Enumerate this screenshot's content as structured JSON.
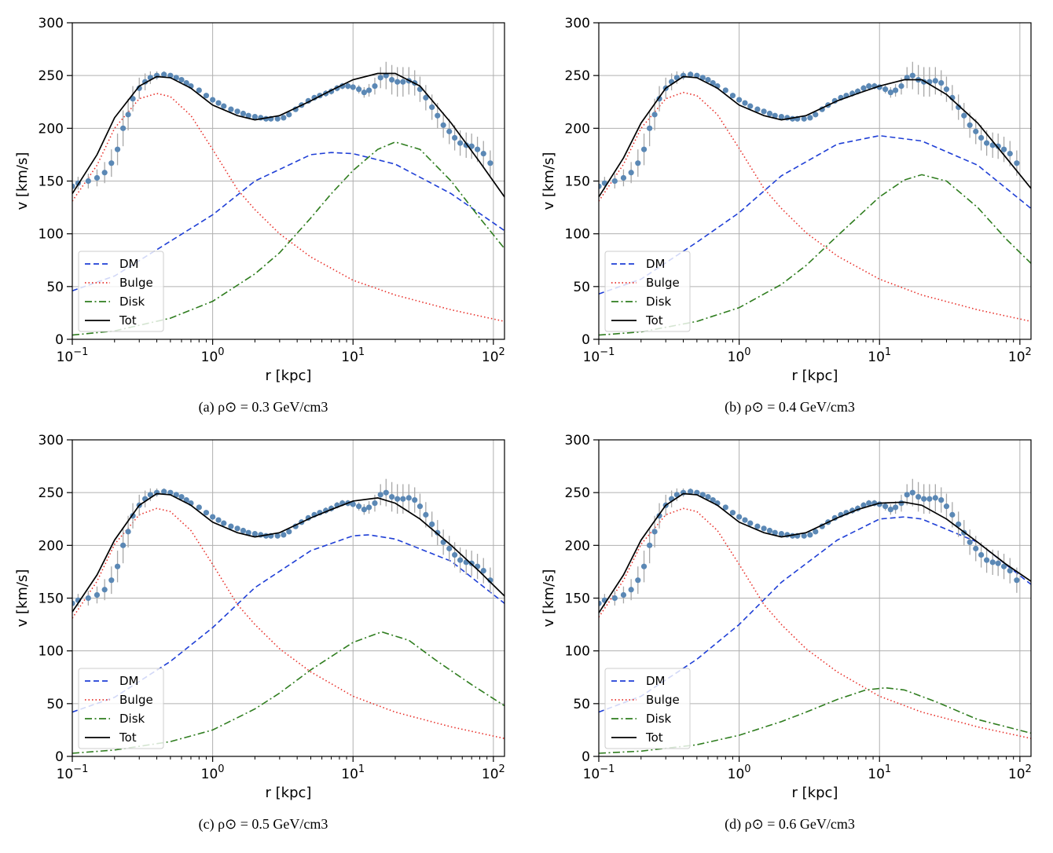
{
  "chart_data": [
    {
      "id": "a",
      "caption": "(a) ρ⊙ = 0.3 GeV/cm3",
      "type": "line",
      "xlabel": "r [kpc]",
      "ylabel": "v [km/s]",
      "xscale": "log",
      "xlim": [
        0.1,
        120
      ],
      "ylim": [
        0,
        300
      ],
      "yticks": [
        0,
        50,
        100,
        150,
        200,
        250,
        300
      ],
      "xticks": [
        {
          "v": 0.1,
          "label": "10−1"
        },
        {
          "v": 1,
          "label": "100"
        },
        {
          "v": 10,
          "label": "101"
        },
        {
          "v": 100,
          "label": "102"
        }
      ],
      "grid": true,
      "legend": {
        "position": "lower-left",
        "entries": [
          "DM",
          "Bulge",
          "Disk",
          "Tot"
        ]
      },
      "series": [
        {
          "name": "DM",
          "style": "dashed",
          "color": "#1f3fd6",
          "x": [
            0.1,
            0.2,
            0.5,
            1,
            2,
            5,
            7,
            10,
            20,
            50,
            120
          ],
          "y": [
            46,
            60,
            93,
            118,
            150,
            175,
            177,
            176,
            166,
            138,
            103
          ]
        },
        {
          "name": "Bulge",
          "style": "dotted",
          "color": "#e8312b",
          "x": [
            0.1,
            0.15,
            0.2,
            0.3,
            0.4,
            0.5,
            0.7,
            1,
            1.5,
            2,
            3,
            5,
            10,
            20,
            50,
            120
          ],
          "y": [
            131,
            165,
            200,
            228,
            233,
            230,
            212,
            180,
            142,
            123,
            100,
            78,
            56,
            42,
            28,
            17
          ]
        },
        {
          "name": "Disk",
          "style": "dashdot",
          "color": "#2f7d1f",
          "x": [
            0.1,
            0.2,
            0.5,
            1,
            2,
            3,
            5,
            7,
            10,
            15,
            20,
            30,
            50,
            80,
            120
          ],
          "y": [
            4,
            8,
            20,
            36,
            62,
            82,
            115,
            138,
            160,
            180,
            187,
            180,
            150,
            115,
            86
          ]
        },
        {
          "name": "Tot",
          "style": "solid",
          "color": "#000000",
          "x": [
            0.1,
            0.15,
            0.2,
            0.3,
            0.4,
            0.5,
            0.7,
            1,
            1.5,
            2,
            3,
            5,
            7,
            10,
            15,
            20,
            30,
            50,
            80,
            120
          ],
          "y": [
            138,
            175,
            210,
            240,
            249,
            248,
            238,
            222,
            212,
            208,
            212,
            226,
            236,
            246,
            252,
            252,
            240,
            205,
            168,
            135
          ]
        }
      ]
    },
    {
      "id": "b",
      "caption": "(b) ρ⊙ = 0.4 GeV/cm3",
      "type": "line",
      "xlabel": "r [kpc]",
      "ylabel": "v [km/s]",
      "xscale": "log",
      "xlim": [
        0.1,
        120
      ],
      "ylim": [
        0,
        300
      ],
      "yticks": [
        0,
        50,
        100,
        150,
        200,
        250,
        300
      ],
      "xticks": [
        {
          "v": 0.1,
          "label": "10−1"
        },
        {
          "v": 1,
          "label": "100"
        },
        {
          "v": 10,
          "label": "101"
        },
        {
          "v": 100,
          "label": "102"
        }
      ],
      "grid": true,
      "legend": {
        "position": "lower-left",
        "entries": [
          "DM",
          "Bulge",
          "Disk",
          "Tot"
        ]
      },
      "series": [
        {
          "name": "DM",
          "style": "dashed",
          "color": "#1f3fd6",
          "x": [
            0.1,
            0.2,
            0.5,
            1,
            2,
            5,
            10,
            20,
            50,
            120
          ],
          "y": [
            43,
            57,
            92,
            120,
            155,
            185,
            193,
            188,
            165,
            124
          ]
        },
        {
          "name": "Bulge",
          "style": "dotted",
          "color": "#e8312b",
          "x": [
            0.1,
            0.15,
            0.2,
            0.3,
            0.4,
            0.5,
            0.7,
            1,
            1.5,
            2,
            3,
            5,
            10,
            20,
            50,
            120
          ],
          "y": [
            131,
            166,
            200,
            228,
            234,
            231,
            213,
            181,
            143,
            124,
            101,
            79,
            57,
            42,
            28,
            17
          ]
        },
        {
          "name": "Disk",
          "style": "dashdot",
          "color": "#2f7d1f",
          "x": [
            0.1,
            0.2,
            0.5,
            1,
            2,
            3,
            5,
            10,
            15,
            20,
            30,
            50,
            80,
            120
          ],
          "y": [
            4,
            7,
            17,
            30,
            52,
            70,
            98,
            135,
            151,
            156,
            150,
            125,
            95,
            72
          ]
        },
        {
          "name": "Tot",
          "style": "solid",
          "color": "#000000",
          "x": [
            0.1,
            0.15,
            0.2,
            0.3,
            0.4,
            0.5,
            0.7,
            1,
            1.5,
            2,
            3,
            5,
            7,
            10,
            15,
            20,
            30,
            50,
            80,
            120
          ],
          "y": [
            135,
            172,
            205,
            238,
            249,
            248,
            238,
            222,
            212,
            208,
            212,
            226,
            233,
            240,
            246,
            246,
            232,
            205,
            172,
            143
          ]
        }
      ]
    },
    {
      "id": "c",
      "caption": "(c) ρ⊙ = 0.5 GeV/cm3",
      "type": "line",
      "xlabel": "r [kpc]",
      "ylabel": "v [km/s]",
      "xscale": "log",
      "xlim": [
        0.1,
        120
      ],
      "ylim": [
        0,
        300
      ],
      "yticks": [
        0,
        50,
        100,
        150,
        200,
        250,
        300
      ],
      "xticks": [
        {
          "v": 0.1,
          "label": "10−1"
        },
        {
          "v": 1,
          "label": "100"
        },
        {
          "v": 10,
          "label": "101"
        },
        {
          "v": 100,
          "label": "102"
        }
      ],
      "grid": true,
      "legend": {
        "position": "lower-left",
        "entries": [
          "DM",
          "Bulge",
          "Disk",
          "Tot"
        ]
      },
      "series": [
        {
          "name": "DM",
          "style": "dashed",
          "color": "#1f3fd6",
          "x": [
            0.1,
            0.2,
            0.5,
            1,
            2,
            5,
            10,
            13,
            20,
            50,
            120
          ],
          "y": [
            42,
            56,
            90,
            122,
            160,
            195,
            209,
            210,
            206,
            185,
            145
          ]
        },
        {
          "name": "Bulge",
          "style": "dotted",
          "color": "#e8312b",
          "x": [
            0.1,
            0.15,
            0.2,
            0.3,
            0.4,
            0.5,
            0.7,
            1,
            1.5,
            2,
            3,
            5,
            10,
            20,
            50,
            120
          ],
          "y": [
            131,
            166,
            201,
            229,
            235,
            232,
            214,
            182,
            144,
            125,
            102,
            80,
            57,
            42,
            28,
            17
          ]
        },
        {
          "name": "Disk",
          "style": "dashdot",
          "color": "#2f7d1f",
          "x": [
            0.1,
            0.2,
            0.5,
            1,
            2,
            3,
            5,
            10,
            16,
            25,
            40,
            70,
            120
          ],
          "y": [
            3,
            6,
            14,
            25,
            45,
            60,
            82,
            108,
            118,
            110,
            90,
            68,
            48
          ]
        },
        {
          "name": "Tot",
          "style": "solid",
          "color": "#000000",
          "x": [
            0.1,
            0.15,
            0.2,
            0.3,
            0.4,
            0.5,
            0.7,
            1,
            1.5,
            2,
            3,
            5,
            7,
            10,
            15,
            20,
            30,
            50,
            80,
            120
          ],
          "y": [
            137,
            172,
            205,
            238,
            249,
            248,
            238,
            222,
            212,
            208,
            212,
            226,
            234,
            242,
            245,
            240,
            225,
            200,
            175,
            152
          ]
        }
      ]
    },
    {
      "id": "d",
      "caption": "(d) ρ⊙ = 0.6 GeV/cm3",
      "type": "line",
      "xlabel": "r [kpc]",
      "ylabel": "v [km/s]",
      "xscale": "log",
      "xlim": [
        0.1,
        120
      ],
      "ylim": [
        0,
        300
      ],
      "yticks": [
        0,
        50,
        100,
        150,
        200,
        250,
        300
      ],
      "xticks": [
        {
          "v": 0.1,
          "label": "10−1"
        },
        {
          "v": 1,
          "label": "100"
        },
        {
          "v": 10,
          "label": "101"
        },
        {
          "v": 100,
          "label": "102"
        }
      ],
      "grid": true,
      "legend": {
        "position": "lower-left",
        "entries": [
          "DM",
          "Bulge",
          "Disk",
          "Tot"
        ]
      },
      "series": [
        {
          "name": "DM",
          "style": "dashed",
          "color": "#1f3fd6",
          "x": [
            0.1,
            0.2,
            0.5,
            1,
            2,
            5,
            10,
            15,
            20,
            50,
            120
          ],
          "y": [
            42,
            57,
            92,
            125,
            165,
            205,
            225,
            227,
            225,
            203,
            163
          ]
        },
        {
          "name": "Bulge",
          "style": "dotted",
          "color": "#e8312b",
          "x": [
            0.1,
            0.15,
            0.2,
            0.3,
            0.4,
            0.5,
            0.7,
            1,
            1.5,
            2,
            3,
            5,
            10,
            20,
            50,
            120
          ],
          "y": [
            132,
            167,
            201,
            229,
            235,
            232,
            214,
            182,
            144,
            125,
            102,
            80,
            57,
            42,
            28,
            17
          ]
        },
        {
          "name": "Disk",
          "style": "dashdot",
          "color": "#2f7d1f",
          "x": [
            0.1,
            0.2,
            0.5,
            1,
            2,
            3,
            5,
            8,
            11,
            15,
            25,
            50,
            120
          ],
          "y": [
            3,
            5,
            11,
            20,
            33,
            42,
            54,
            63,
            65,
            63,
            52,
            35,
            22
          ]
        },
        {
          "name": "Tot",
          "style": "solid",
          "color": "#000000",
          "x": [
            0.1,
            0.15,
            0.2,
            0.3,
            0.4,
            0.5,
            0.7,
            1,
            1.5,
            2,
            3,
            5,
            7,
            10,
            15,
            20,
            30,
            50,
            80,
            120
          ],
          "y": [
            136,
            172,
            205,
            238,
            249,
            248,
            238,
            222,
            212,
            208,
            212,
            226,
            234,
            240,
            241,
            238,
            225,
            203,
            182,
            166
          ]
        }
      ],
      "observations": null
    }
  ],
  "observations": {
    "name": "data",
    "color": "#5b88b5",
    "errorbar_color": "#a8a8a8",
    "r": [
      0.1,
      0.11,
      0.13,
      0.15,
      0.17,
      0.19,
      0.21,
      0.23,
      0.25,
      0.27,
      0.3,
      0.33,
      0.36,
      0.4,
      0.45,
      0.5,
      0.55,
      0.6,
      0.65,
      0.7,
      0.8,
      0.9,
      1.0,
      1.1,
      1.2,
      1.35,
      1.5,
      1.65,
      1.8,
      2.0,
      2.2,
      2.4,
      2.6,
      2.9,
      3.2,
      3.5,
      3.9,
      4.3,
      4.8,
      5.3,
      5.8,
      6.4,
      7.0,
      7.7,
      8.4,
      9.2,
      10.0,
      11.0,
      12.0,
      13.0,
      14.3,
      15.7,
      17.2,
      18.9,
      20.7,
      22.7,
      25.0,
      27.5,
      30.0,
      33.0,
      36.5,
      40.0,
      44.0,
      48.5,
      53.0,
      58.0,
      64.0,
      70.0,
      77.0,
      85.0,
      95.0
    ],
    "v": [
      145,
      148,
      150,
      153,
      158,
      167,
      180,
      200,
      213,
      228,
      238,
      244,
      248,
      250,
      251,
      250,
      248,
      246,
      243,
      240,
      236,
      231,
      227,
      224,
      221,
      218,
      216,
      214,
      212,
      211,
      210,
      209,
      209,
      209,
      210,
      213,
      218,
      222,
      226,
      229,
      231,
      233,
      235,
      238,
      240,
      240,
      239,
      237,
      234,
      236,
      240,
      248,
      250,
      246,
      244,
      244,
      245,
      243,
      237,
      229,
      220,
      212,
      203,
      197,
      191,
      186,
      184,
      183,
      180,
      176,
      167
    ],
    "err": [
      6,
      6,
      7,
      8,
      10,
      13,
      15,
      17,
      15,
      12,
      10,
      8,
      6,
      4,
      3,
      2,
      2,
      2,
      2,
      2,
      2,
      2,
      2,
      2,
      2,
      2,
      2,
      2,
      2,
      2,
      2,
      2,
      2,
      2,
      2,
      2,
      2,
      2,
      2,
      2,
      2,
      3,
      3,
      3,
      3,
      3,
      3,
      4,
      5,
      6,
      8,
      10,
      13,
      14,
      14,
      14,
      13,
      12,
      12,
      12,
      12,
      12,
      12,
      12,
      12,
      12,
      12,
      12,
      12,
      12,
      12
    ]
  }
}
